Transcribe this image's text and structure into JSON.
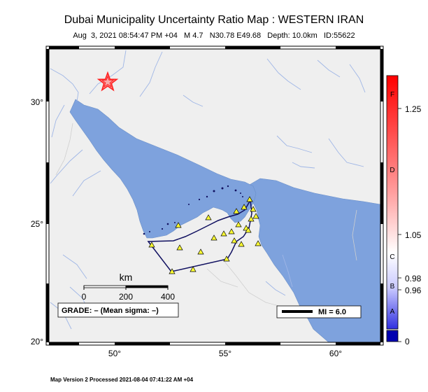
{
  "header": {
    "title": "Dubai Municipality Uncertainty Ratio Map : WESTERN IRAN",
    "subtitle": "Aug  3, 2021 08:54:47 PM +04   M 4.7   N30.78 E49.68   Depth: 10.0km   ID:55622"
  },
  "footer": {
    "text": "Map Version 2 Processed 2021-08-04 07:41:22 AM +04"
  },
  "map": {
    "lat_labels": [
      "30°",
      "25°",
      "20°"
    ],
    "lon_labels": [
      "50°",
      "55°",
      "60°"
    ],
    "scalebar": {
      "title": "km",
      "ticks": [
        "0",
        "200",
        "400"
      ]
    },
    "grade": "GRADE: – (Mean sigma: –)",
    "mi_legend": "MI = 6.0",
    "colors": {
      "land": "#efefef",
      "water": "#7ea2dd",
      "region_outline": "#101060",
      "station": "#ffff33",
      "epicenter": "#ff2a2a"
    },
    "epicenter": {
      "lat": 30.78,
      "lon": 49.68,
      "icon": "star-icon"
    },
    "stations_icon": "triangle-icon"
  },
  "colorbar": {
    "values": [
      "1.25",
      "1.05",
      "0.98",
      "0.96",
      "0"
    ],
    "grades": [
      "F",
      "D",
      "C",
      "B",
      "A"
    ],
    "colors": {
      "top": "#ff0000",
      "mid": "#ffffff",
      "bottom": "#1010d0",
      "base": "#0000b0"
    }
  }
}
